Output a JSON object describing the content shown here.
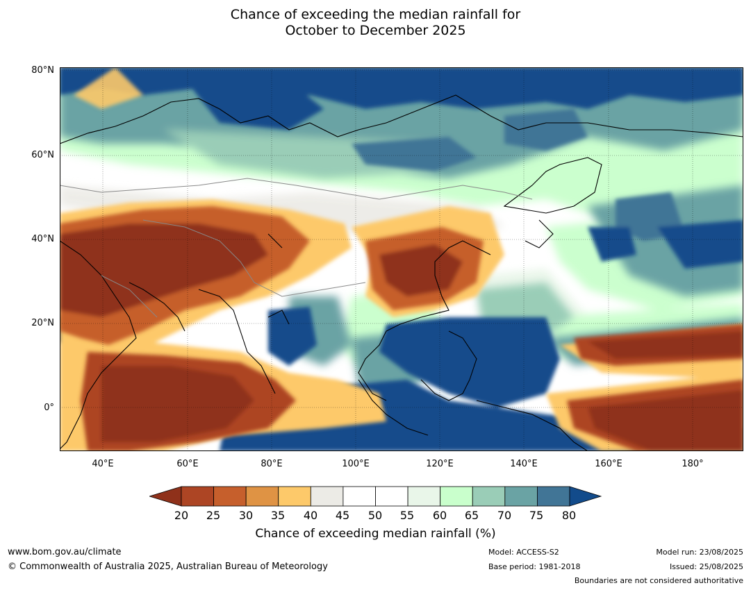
{
  "title_line1": "Chance of exceeding the median rainfall for",
  "title_line2": "October to December 2025",
  "lat_labels": [
    "80°N",
    "60°N",
    "40°N",
    "20°N",
    "0°"
  ],
  "lon_labels": [
    "40°E",
    "60°E",
    "80°E",
    "100°E",
    "120°E",
    "140°E",
    "160°E",
    "180°"
  ],
  "colorbar": {
    "label": "Chance of exceeding median rainfall (%)",
    "ticks": [
      "20",
      "25",
      "30",
      "35",
      "40",
      "45",
      "50",
      "55",
      "60",
      "65",
      "70",
      "75",
      "80"
    ],
    "colors": {
      "below_20": "#8f311a",
      "20_25": "#ad4524",
      "25_30": "#c65f2c",
      "30_35": "#df9344",
      "35_40": "#fdc96a",
      "40_45": "#ecebe6",
      "45_50": "#ffffff",
      "50_55": "#ffffff",
      "55_60": "#e9f6e9",
      "60_65": "#c9ffcc",
      "65_70": "#9acdb7",
      "70_75": "#6aa3a4",
      "75_80": "#417596",
      "above_80": "#124b8b"
    }
  },
  "footer": {
    "url": "www.bom.gov.au/climate",
    "copyright": "© Commonwealth of Australia 2025, Australian Bureau of Meteorology",
    "model": "Model: ACCESS-S2",
    "base_period": "Base period: 1981-2018",
    "model_run": "Model run: 23/08/2025",
    "issued": "Issued: 25/08/2025",
    "disclaimer": "Boundaries are not considered authoritative"
  }
}
